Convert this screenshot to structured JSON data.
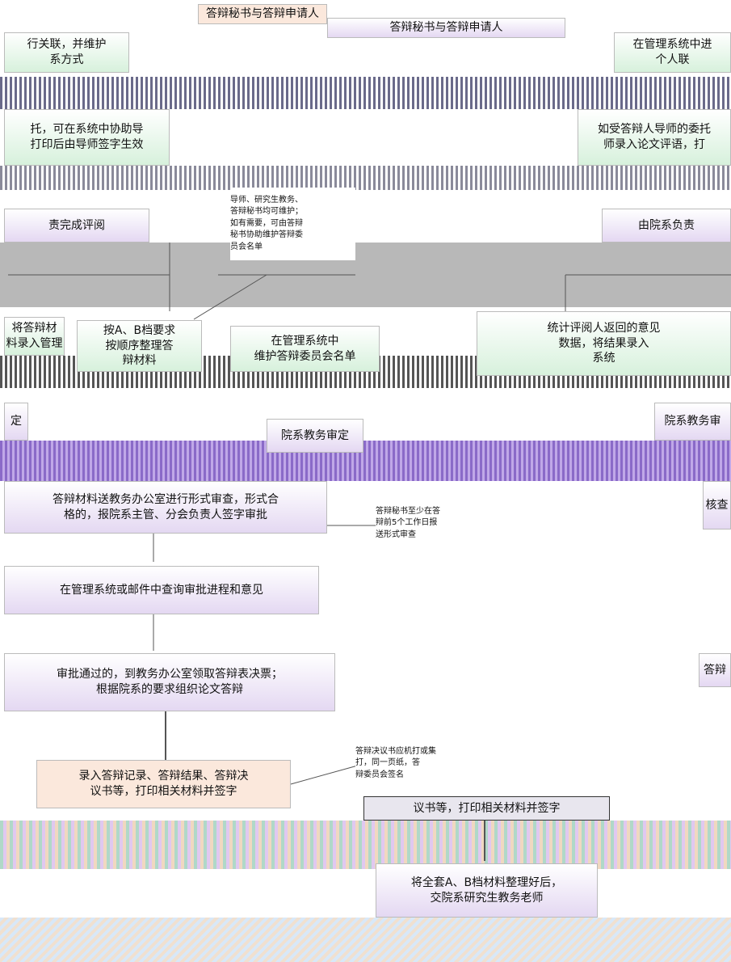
{
  "nodes": [
    {
      "lines": [
        "答辩秘书与答辩申请人"
      ]
    },
    {
      "lines": [
        "答辩秘书与答辩申请人"
      ]
    },
    {
      "lines": [
        "行关联，并维护",
        "系方式"
      ]
    },
    {
      "lines": [
        "在管理系统中进",
        "个人联"
      ]
    },
    {
      "lines": [
        "托，可在系统中协助导",
        "打印后由导师签字生效"
      ]
    },
    {
      "lines": [
        "如受答辩人导师的委托",
        "师录入论文评语，打"
      ]
    },
    {
      "lines": [
        "导师、研究生教务、",
        "答辩秘书均可维护；",
        "如有需要，可由答辩",
        "秘书协助维护答辩委",
        "员会名单"
      ]
    },
    {
      "lines": [
        "责完成评阅"
      ]
    },
    {
      "lines": [
        "由院系负责"
      ]
    },
    {
      "lines": [
        "将答辩材",
        "料录入管理"
      ]
    },
    {
      "lines": [
        "按A、B档要求",
        "按顺序整理答",
        "辩材料"
      ]
    },
    {
      "lines": [
        "在管理系统中",
        "维护答辩委员会名单"
      ]
    },
    {
      "lines": [
        "统计评阅人返回的意见",
        "数据，将结果录入",
        "系统"
      ]
    },
    {
      "lines": [
        "定"
      ]
    },
    {
      "lines": [
        "院系教务审定"
      ]
    },
    {
      "lines": [
        "院系教务审"
      ]
    },
    {
      "lines": [
        "答辩材料送教务办公室进行形式审查，形式合",
        "格的，报院系主管、分会负责人签字审批"
      ]
    },
    {
      "lines": [
        "答辩秘书至少在答",
        "辩前5个工作日报",
        "送形式审查"
      ]
    },
    {
      "lines": [
        "核查"
      ]
    },
    {
      "lines": [
        "在管理系统或邮件中查询审批进程和意见"
      ]
    },
    {
      "lines": [
        "审批通过的，到教务办公室领取答辩表决票；",
        "根据院系的要求组织论文答辩"
      ]
    },
    {
      "lines": [
        "答辩"
      ]
    },
    {
      "lines": [
        "录入答辩记录、答辩结果、答辩决",
        "议书等，打印相关材料并签字"
      ]
    },
    {
      "lines": [
        "答辩决议书应机打或集",
        "打，同一页纸，答",
        "辩委员会签名"
      ]
    },
    {
      "lines": [
        "议书等，打印相关材料并签字"
      ]
    },
    {
      "lines": [
        "将全套A、B档材料整理好后，",
        "交院系研究生教务老师"
      ]
    }
  ]
}
